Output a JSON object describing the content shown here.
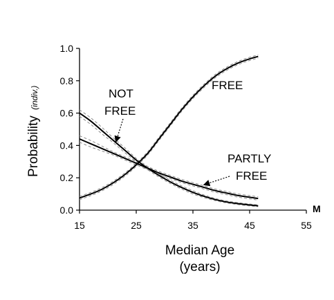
{
  "chart_data": {
    "type": "line",
    "xlabel_line1": "Median Age",
    "xlabel_line2": "(years)",
    "ylabel": "Probability",
    "ylabel_sub": "(indiv.)",
    "x_unit_marker": "M",
    "xlim": [
      15,
      55
    ],
    "ylim": [
      0,
      1.0
    ],
    "x_ticks": [
      15,
      25,
      35,
      45,
      55
    ],
    "x_tick_labels": [
      "15",
      "25",
      "35",
      "45",
      "55"
    ],
    "y_ticks": [
      0,
      0.2,
      0.4,
      0.6,
      0.8,
      1.0
    ],
    "y_tick_labels": [
      "0.0",
      "0.2",
      "0.4",
      "0.6",
      "0.8",
      "1.0"
    ],
    "grid": false,
    "legend": "none",
    "series": [
      {
        "name": "FREE",
        "label_lines": [
          "FREE"
        ],
        "x": [
          15,
          17,
          19,
          21,
          23,
          25,
          27,
          29,
          31,
          33,
          35,
          37,
          39,
          41,
          43,
          45,
          46.5
        ],
        "y": [
          0.075,
          0.1,
          0.13,
          0.17,
          0.22,
          0.28,
          0.35,
          0.44,
          0.53,
          0.62,
          0.7,
          0.77,
          0.83,
          0.875,
          0.91,
          0.935,
          0.95
        ],
        "ci_lower": [
          0.065,
          0.09,
          0.12,
          0.16,
          0.21,
          0.27,
          0.34,
          0.43,
          0.52,
          0.61,
          0.69,
          0.76,
          0.82,
          0.865,
          0.9,
          0.925,
          0.94
        ],
        "ci_upper": [
          0.085,
          0.11,
          0.14,
          0.18,
          0.23,
          0.29,
          0.36,
          0.45,
          0.54,
          0.63,
          0.71,
          0.78,
          0.84,
          0.885,
          0.92,
          0.945,
          0.96
        ]
      },
      {
        "name": "NOT FREE",
        "label_lines": [
          "NOT",
          "FREE"
        ],
        "x": [
          15,
          17,
          19,
          21,
          23,
          25,
          27,
          29,
          31,
          33,
          35,
          37,
          39,
          41,
          43,
          45,
          46.5
        ],
        "y": [
          0.6,
          0.55,
          0.49,
          0.43,
          0.37,
          0.31,
          0.26,
          0.215,
          0.175,
          0.14,
          0.11,
          0.085,
          0.065,
          0.05,
          0.04,
          0.032,
          0.027
        ],
        "ci_lower": [
          0.58,
          0.53,
          0.47,
          0.415,
          0.355,
          0.3,
          0.25,
          0.205,
          0.165,
          0.13,
          0.1,
          0.077,
          0.058,
          0.044,
          0.034,
          0.026,
          0.022
        ],
        "ci_upper": [
          0.62,
          0.57,
          0.51,
          0.445,
          0.385,
          0.32,
          0.27,
          0.225,
          0.185,
          0.15,
          0.12,
          0.093,
          0.072,
          0.056,
          0.046,
          0.038,
          0.032
        ]
      },
      {
        "name": "PARTLY FREE",
        "label_lines": [
          "PARTLY",
          "FREE"
        ],
        "x": [
          15,
          17,
          19,
          21,
          23,
          25,
          27,
          29,
          31,
          33,
          35,
          37,
          39,
          41,
          43,
          45,
          46.5
        ],
        "y": [
          0.44,
          0.41,
          0.38,
          0.35,
          0.32,
          0.29,
          0.26,
          0.23,
          0.205,
          0.18,
          0.16,
          0.14,
          0.12,
          0.105,
          0.09,
          0.08,
          0.072
        ],
        "ci_lower": [
          0.42,
          0.39,
          0.365,
          0.34,
          0.31,
          0.28,
          0.25,
          0.22,
          0.195,
          0.17,
          0.15,
          0.13,
          0.11,
          0.095,
          0.08,
          0.07,
          0.062
        ],
        "ci_upper": [
          0.46,
          0.43,
          0.395,
          0.36,
          0.33,
          0.3,
          0.27,
          0.24,
          0.215,
          0.19,
          0.17,
          0.15,
          0.13,
          0.115,
          0.1,
          0.09,
          0.082
        ]
      }
    ]
  },
  "colors": {
    "line": "#000000",
    "ci": "#8a8a8a"
  }
}
